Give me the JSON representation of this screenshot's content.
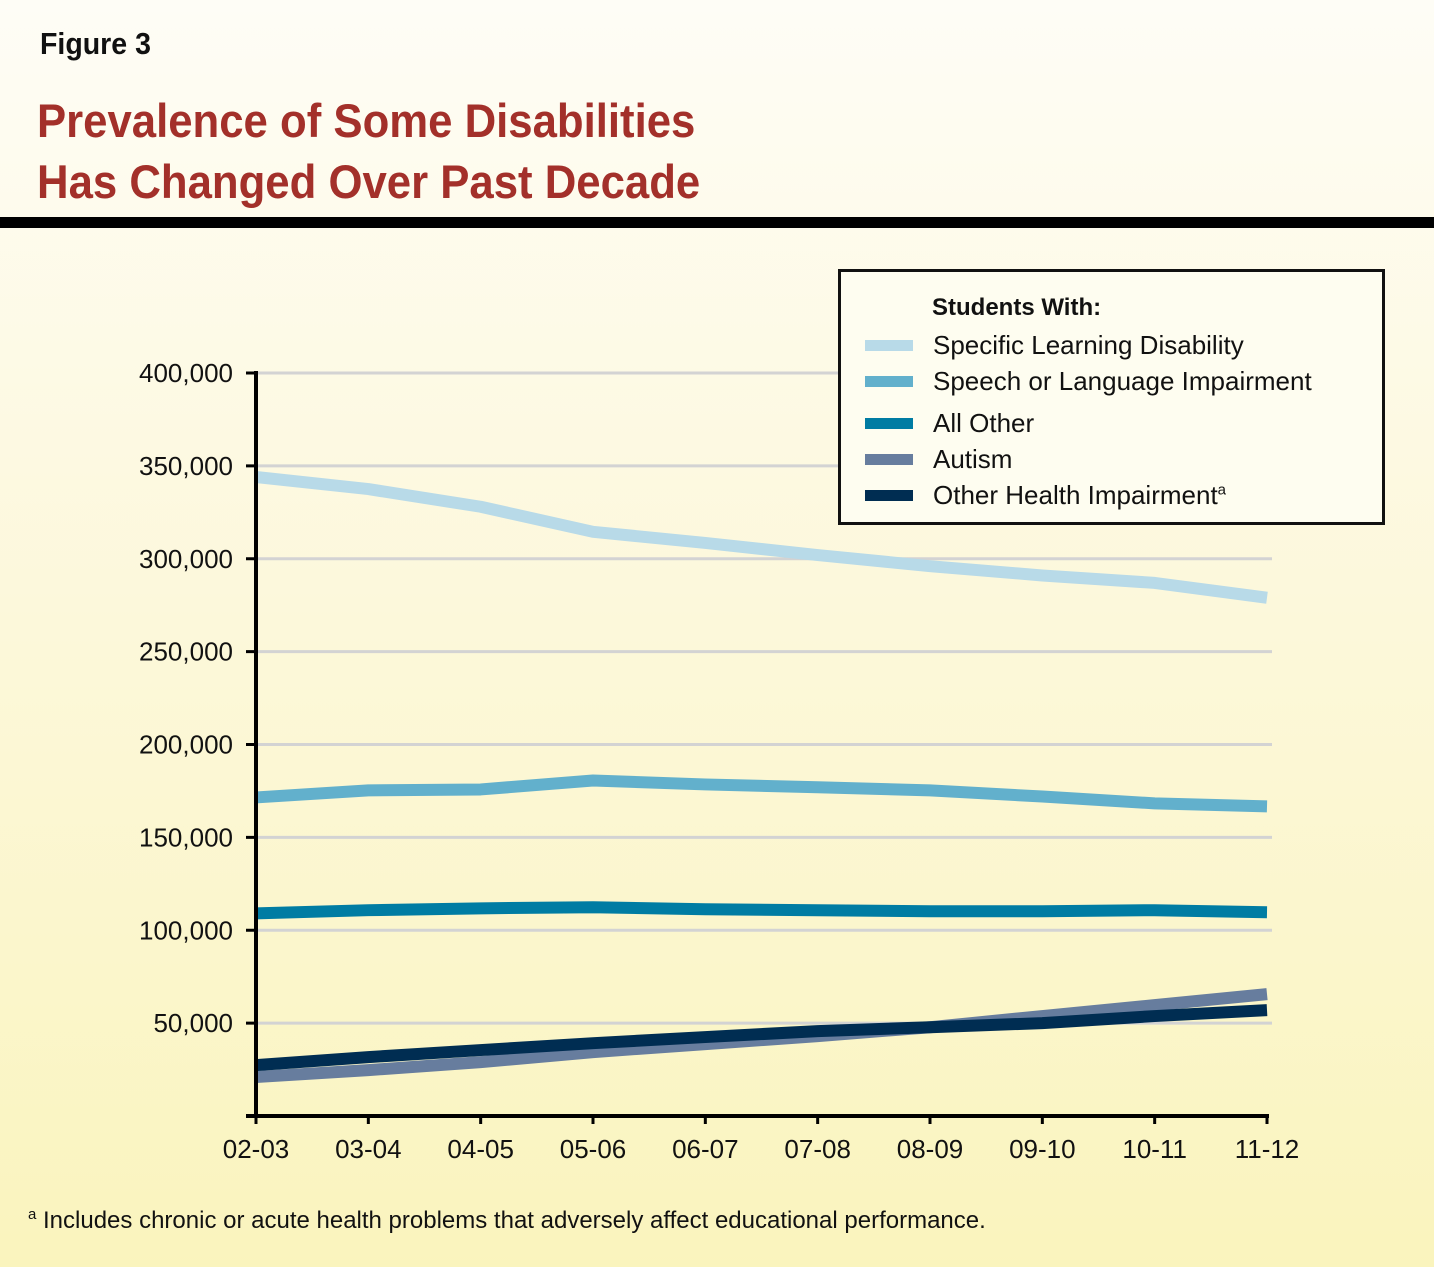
{
  "figure_label": "Figure 3",
  "title_line1": "Prevalence of Some Disabilities",
  "title_line2": "Has Changed Over Past Decade",
  "legend": {
    "title": "Students With:",
    "items": [
      {
        "label": "Specific Learning Disability",
        "sup": "",
        "color": "#b8dae8"
      },
      {
        "label": "Speech or Language Impairment",
        "sup": "",
        "color": "#62b0cc"
      },
      {
        "label": "All Other",
        "sup": "",
        "color": "#007ca3"
      },
      {
        "label": "Autism",
        "sup": "",
        "color": "#677d9e"
      },
      {
        "label": "Other Health Impairment",
        "sup": "a",
        "color": "#002d52"
      }
    ]
  },
  "footnote": {
    "marker": "a",
    "text": "Includes chronic or acute health problems that adversely affect educational performance."
  },
  "chart_data": {
    "type": "line",
    "title": "Prevalence of Some Disabilities Has Changed Over Past Decade",
    "xlabel": "",
    "ylabel": "",
    "ylim": [
      0,
      400000
    ],
    "yticks": [
      50000,
      100000,
      150000,
      200000,
      250000,
      300000,
      350000,
      400000
    ],
    "ytick_labels": [
      "50,000",
      "100,000",
      "150,000",
      "200,000",
      "250,000",
      "300,000",
      "350,000",
      "400,000"
    ],
    "grid": true,
    "legend_position": "top-right",
    "categories": [
      "02-03",
      "03-04",
      "04-05",
      "05-06",
      "06-07",
      "07-08",
      "08-09",
      "09-10",
      "10-11",
      "11-12"
    ],
    "series": [
      {
        "name": "Specific Learning Disability",
        "color": "#b8dae8",
        "values": [
          344000,
          337500,
          328000,
          314500,
          308500,
          302000,
          296000,
          291000,
          287000,
          279000
        ]
      },
      {
        "name": "Speech or Language Impairment",
        "color": "#62b0cc",
        "values": [
          171500,
          175300,
          175800,
          180600,
          178500,
          177000,
          175300,
          172000,
          168300,
          166700
        ]
      },
      {
        "name": "All Other",
        "color": "#007ca3",
        "values": [
          109100,
          110800,
          111800,
          112400,
          111300,
          110800,
          110200,
          110200,
          110800,
          109700
        ]
      },
      {
        "name": "Autism",
        "color": "#677d9e",
        "values": [
          21000,
          24700,
          29000,
          34400,
          38700,
          43000,
          47800,
          53800,
          59700,
          65600
        ]
      },
      {
        "name": "Other Health Impairment",
        "color": "#002d52",
        "values": [
          27400,
          31700,
          35500,
          39200,
          42500,
          45700,
          47800,
          50000,
          53800,
          57000
        ]
      }
    ]
  }
}
